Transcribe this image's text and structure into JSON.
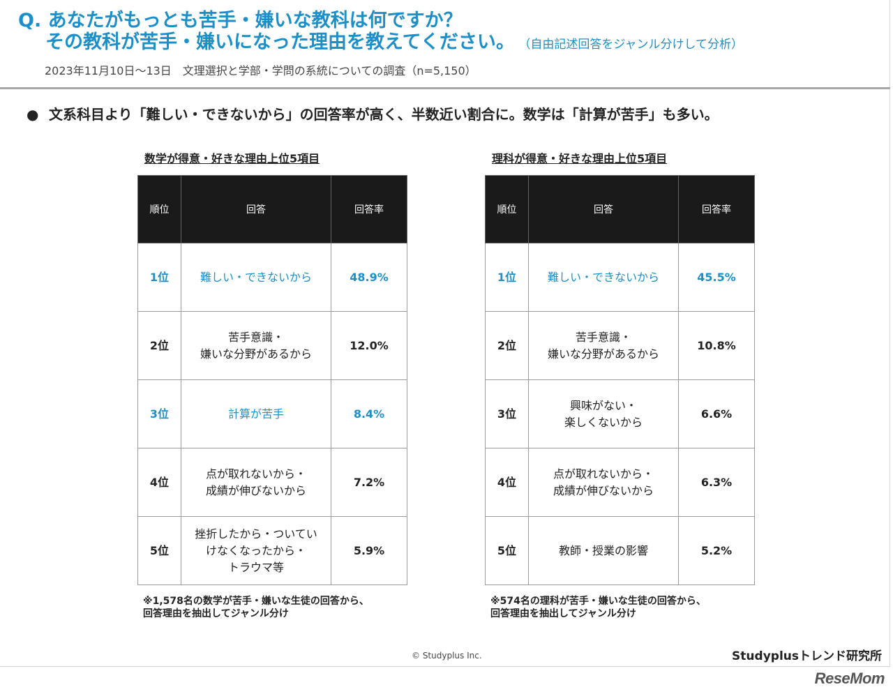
{
  "header": {
    "title_line1": "Q. あなたがもっとも苦手・嫌いな教科は何ですか？",
    "title_line2": "その教科が苦手・嫌いになった理由を教えてください。",
    "title_paren": "（自由記述回答をジャンル分けして分析）",
    "survey": "2023年11月10日～13日　文理選択と学部・学問の系統についての調査（n=5,150）"
  },
  "bullet": "文系科目より「難しい・できないから」の回答率が高く、半数近い割合に。数学は「計算が苦手」も多い。",
  "panels": [
    {
      "title": "数学が得意・好きな理由上位5項目",
      "headers": [
        "順位",
        "回答",
        "回答率"
      ],
      "rows": [
        {
          "rank": "1位",
          "answer": "難しい・できないから",
          "rate": "48.9%"
        },
        {
          "rank": "2位",
          "answer": "苦手意識・\n嫌いな分野があるから",
          "rate": "12.0%"
        },
        {
          "rank": "3位",
          "answer": "計算が苦手",
          "rate": "8.4%"
        },
        {
          "rank": "4位",
          "answer": "点が取れないから・\n成績が伸びないから",
          "rate": "7.2%"
        },
        {
          "rank": "5位",
          "answer": "挫折したから・ついてい\nけなくなったから・\nトラウマ等",
          "rate": "5.9%"
        }
      ],
      "note": "※1,578名の数学が苦手・嫌いな生徒の回答から、\n回答理由を抽出してジャンル分け"
    },
    {
      "title": "理科が得意・好きな理由上位5項目",
      "headers": [
        "順位",
        "回答",
        "回答率"
      ],
      "rows": [
        {
          "rank": "1位",
          "answer": "難しい・できないから",
          "rate": "45.5%"
        },
        {
          "rank": "2位",
          "answer": "苦手意識・\n嫌いな分野があるから",
          "rate": "10.8%"
        },
        {
          "rank": "3位",
          "answer": "興味がない・\n楽しくないから",
          "rate": "6.6%"
        },
        {
          "rank": "4位",
          "answer": "点が取れないから・\n成績が伸びないから",
          "rate": "6.3%"
        },
        {
          "rank": "5位",
          "answer": "教師・授業の影響",
          "rate": "5.2%"
        }
      ],
      "note": "※574名の理科が苦手・嫌いな生徒の回答から、\n回答理由を抽出してジャンル分け"
    }
  ],
  "footer": {
    "copyright": "© Studyplus Inc.",
    "lab": "Studyplusトレンド研究所",
    "logo": "ReseMom"
  },
  "colors": {
    "accent": "#1d8fc8",
    "header_bg": "#1a1a1a"
  }
}
